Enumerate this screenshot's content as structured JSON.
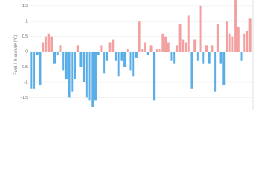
{
  "chart_data": {
    "type": "bar",
    "y_label": "Ecart à la normale (°C)",
    "values": [
      -1.2,
      -1.2,
      -0.1,
      -1.1,
      0.3,
      0.5,
      0.6,
      0.5,
      -0.4,
      -0.1,
      0.2,
      -0.6,
      -0.9,
      -1.5,
      -1.3,
      -0.9,
      0.2,
      -0.5,
      -1.0,
      -1.5,
      -1.6,
      -1.8,
      -1.6,
      -0.1,
      0.2,
      -0.7,
      -0.3,
      0.3,
      0.4,
      -0.3,
      -0.8,
      -0.3,
      -0.5,
      0.1,
      -0.6,
      -0.8,
      -0.2,
      1.0,
      0.1,
      0.3,
      -0.1,
      0.2,
      -1.6,
      0.1,
      0.1,
      0.6,
      0.5,
      0.3,
      -0.3,
      -0.4,
      0.2,
      0.9,
      0.4,
      0.3,
      1.2,
      -1.2,
      0.4,
      -0.3,
      1.5,
      -0.4,
      0.2,
      -0.4,
      0.2,
      -1.3,
      0.9,
      -0.4,
      -1.1,
      1.0,
      0.6,
      0.5,
      1.7,
      0.8,
      -0.3,
      0.6,
      0.7,
      1.1
    ],
    "positive_color": "#f2a0a0",
    "negative_color": "#5aaee8",
    "ylim": [
      -1.9,
      1.7
    ],
    "yticks": [
      -1.5,
      -1,
      -0.5,
      0,
      0.5,
      1,
      1.5
    ],
    "grid": true
  }
}
